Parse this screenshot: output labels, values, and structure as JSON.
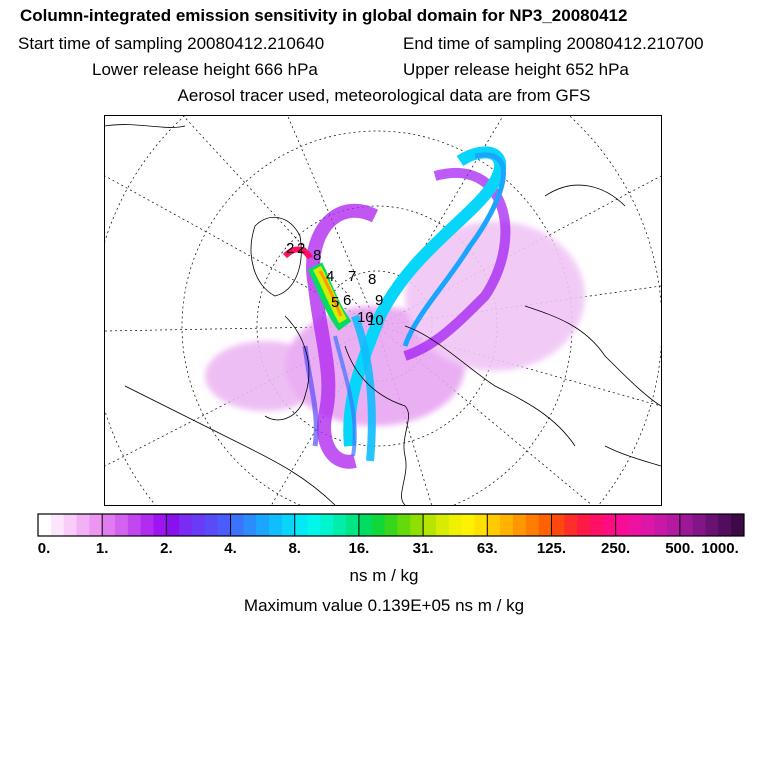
{
  "title": "Column-integrated emission sensitivity in global domain for NP3_20080412",
  "start_sampling": "Start time of sampling 20080412.210640",
  "end_sampling": "End time of sampling 20080412.210700",
  "lower_release": "Lower release height  666 hPa",
  "upper_release": "Upper release height  652 hPa",
  "tracer_info": "Aerosol tracer used, meteorological data are from GFS",
  "map_labels": [
    "2",
    "2",
    "8",
    "4",
    "7",
    "8",
    "5",
    "6",
    "9",
    "10",
    "10"
  ],
  "colorbar": {
    "tick_labels": [
      "0.",
      "1.",
      "2.",
      "4.",
      "8.",
      "16.",
      "31.",
      "63.",
      "125.",
      "250.",
      "500.",
      "1000."
    ],
    "colors": [
      "#ffffff",
      "#fde6fd",
      "#f9ccf9",
      "#f3b1f5",
      "#ec96f2",
      "#e07cf0",
      "#d362ee",
      "#c347ee",
      "#b12cf0",
      "#9f15f2",
      "#8a10f0",
      "#7a2cf5",
      "#6a3af7",
      "#5a4bf9",
      "#4a5cfb",
      "#3a74fc",
      "#2a8cfd",
      "#1ba5fe",
      "#10bdfd",
      "#08d5fa",
      "#02eaf5",
      "#00f7ea",
      "#00f5cc",
      "#00eeaa",
      "#00e686",
      "#00de62",
      "#10d83a",
      "#38d61b",
      "#64da0a",
      "#8fdf04",
      "#b6e502",
      "#d6ec01",
      "#eef200",
      "#fff200",
      "#ffe000",
      "#ffcb00",
      "#ffb200",
      "#ff9800",
      "#ff7d00",
      "#ff6200",
      "#ff4810",
      "#ff2e2a",
      "#ff1a46",
      "#ff1066",
      "#ff0b82",
      "#fa0d96",
      "#ee12a2",
      "#dd16a8",
      "#c918a8",
      "#b419a2",
      "#9c1896",
      "#831586",
      "#6a1272",
      "#520e5c",
      "#3c0a46"
    ],
    "units": "ns m / kg"
  },
  "max_value": "Maximum value  0.139E+05 ns m / kg"
}
